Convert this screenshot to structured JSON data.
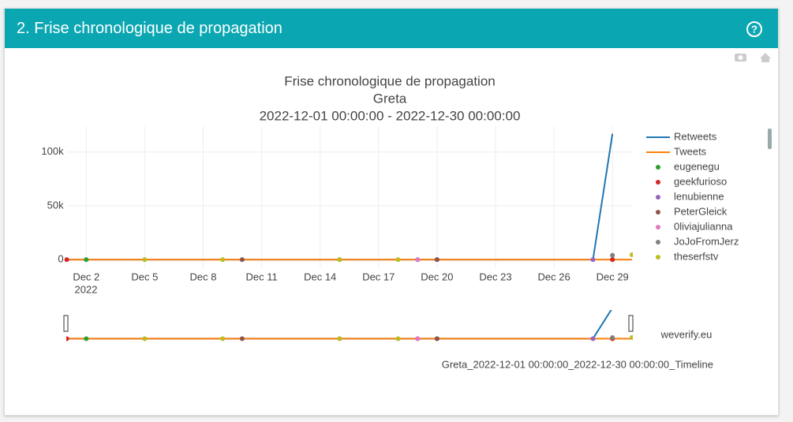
{
  "header": {
    "title": "2. Frise chronologique de propagation"
  },
  "chart_data": {
    "type": "line",
    "title": [
      "Frise chronologique de propagation",
      "Greta",
      "2022-12-01 00:00:00 - 2022-12-30 00:00:00"
    ],
    "xlim": [
      "2022-12-01",
      "2022-12-30"
    ],
    "xticks": [
      {
        "value": "2022-12-02",
        "label": "Dec 2"
      },
      {
        "value": "2022-12-05",
        "label": "Dec 5"
      },
      {
        "value": "2022-12-08",
        "label": "Dec 8"
      },
      {
        "value": "2022-12-11",
        "label": "Dec 11"
      },
      {
        "value": "2022-12-14",
        "label": "Dec 14"
      },
      {
        "value": "2022-12-17",
        "label": "Dec 17"
      },
      {
        "value": "2022-12-20",
        "label": "Dec 20"
      },
      {
        "value": "2022-12-23",
        "label": "Dec 23"
      },
      {
        "value": "2022-12-26",
        "label": "Dec 26"
      },
      {
        "value": "2022-12-29",
        "label": "Dec 29"
      }
    ],
    "x_year_label": "2022",
    "ylim": [
      -8000,
      124000
    ],
    "yticks": [
      0,
      {
        "value": 50000,
        "label": "50k"
      },
      {
        "value": 100000,
        "label": "100k"
      }
    ],
    "grid": true,
    "series": [
      {
        "name": "Retweets",
        "kind": "line",
        "color": "#1f77b4",
        "x": [
          "2022-12-01",
          "2022-12-28",
          "2022-12-29"
        ],
        "values": [
          0,
          0,
          117000
        ]
      },
      {
        "name": "Tweets",
        "kind": "line",
        "color": "#ff7f0e",
        "x": [
          "2022-12-01",
          "2022-12-30"
        ],
        "values": [
          0,
          0
        ]
      },
      {
        "name": "eugenegu",
        "kind": "scatter",
        "color": "#2ca02c",
        "x": [
          "2022-12-02",
          "2022-12-29"
        ],
        "values": [
          0,
          0
        ]
      },
      {
        "name": "geekfurioso",
        "kind": "scatter",
        "color": "#d62728",
        "x": [
          "2022-12-01",
          "2022-12-20",
          "2022-12-29"
        ],
        "values": [
          0,
          0,
          0
        ]
      },
      {
        "name": "lenubienne",
        "kind": "scatter",
        "color": "#9467bd",
        "x": [
          "2022-12-19",
          "2022-12-28"
        ],
        "values": [
          0,
          0
        ]
      },
      {
        "name": "PeterGleick",
        "kind": "scatter",
        "color": "#8c564b",
        "x": [
          "2022-12-10",
          "2022-12-20"
        ],
        "values": [
          0,
          0
        ]
      },
      {
        "name": "0liviajulianna",
        "kind": "scatter",
        "color": "#e377c2",
        "x": [
          "2022-12-19"
        ],
        "values": [
          0
        ]
      },
      {
        "name": "JoJoFromJerz",
        "kind": "scatter",
        "color": "#7f7f7f",
        "x": [
          "2022-12-15",
          "2022-12-29"
        ],
        "values": [
          0,
          4000
        ]
      },
      {
        "name": "theserfstv",
        "kind": "scatter",
        "color": "#bcbd22",
        "x": [
          "2022-12-05",
          "2022-12-09",
          "2022-12-15",
          "2022-12-18",
          "2022-12-30"
        ],
        "values": [
          0,
          0,
          0,
          0,
          4500
        ]
      }
    ],
    "annotation": "weverify.eu",
    "footer": "Greta_2022-12-01 00:00:00_2022-12-30 00:00:00_Timeline"
  }
}
